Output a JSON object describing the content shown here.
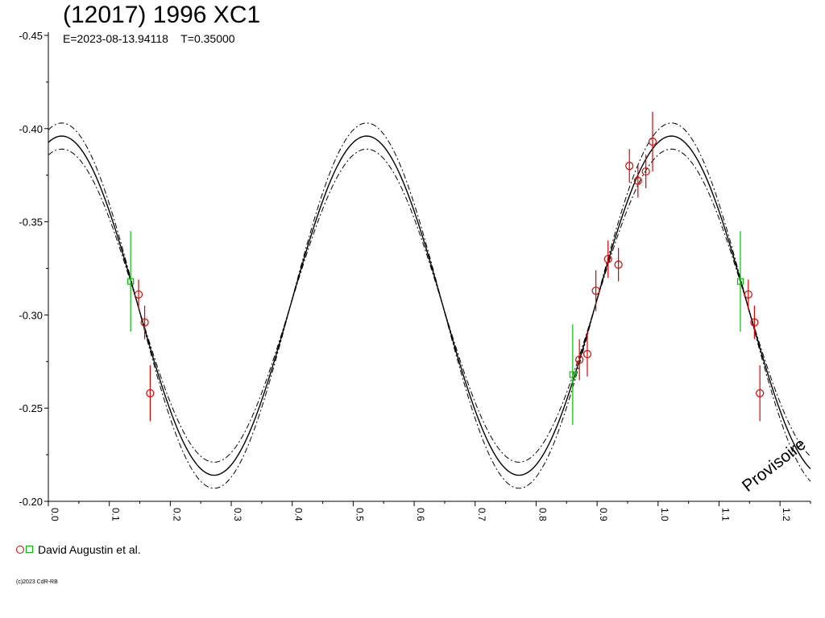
{
  "chart_data": {
    "type": "scatter",
    "title": "(12017) 1996 XC1",
    "subtitle": "E=2023-08-13.94118    T=0.35000",
    "xlabel": "",
    "ylabel": "",
    "xlim": [
      0.0,
      1.25
    ],
    "ylim": [
      -0.45,
      -0.2
    ],
    "y_inverted": true,
    "x_ticks": [
      "0.0",
      "0.1",
      "0.2",
      "0.3",
      "0.4",
      "0.5",
      "0.6",
      "0.7",
      "0.8",
      "0.9",
      "1.0",
      "1.1",
      "1.2"
    ],
    "y_ticks": [
      "-0.45",
      "-0.40",
      "-0.35",
      "-0.30",
      "-0.25",
      "-0.20"
    ],
    "grid": false,
    "watermark": "Provisoire",
    "legend": {
      "position": "bottom-left",
      "label": "David Augustin et al.",
      "marker_colors": [
        "#e00000",
        "#00c000"
      ]
    },
    "model": {
      "mean": -0.305,
      "amplitude": 0.091,
      "cycle_period": 0.5,
      "peak_phase": 0.022,
      "band": 0.007,
      "color": "#000000"
    },
    "series": [
      {
        "marker": "circle",
        "color": "#e00000",
        "points": [
          {
            "x": 0.148,
            "y": -0.311,
            "err": 0.008
          },
          {
            "x": 0.158,
            "y": -0.296,
            "err": 0.009
          },
          {
            "x": 0.167,
            "y": -0.258,
            "err": 0.015
          },
          {
            "x": 0.871,
            "y": -0.276,
            "err": 0.011
          },
          {
            "x": 0.884,
            "y": -0.279,
            "err": 0.012
          },
          {
            "x": 0.898,
            "y": -0.313,
            "err": 0.011
          },
          {
            "x": 0.918,
            "y": -0.33,
            "err": 0.01
          },
          {
            "x": 0.935,
            "y": -0.327,
            "err": 0.009
          },
          {
            "x": 0.953,
            "y": -0.38,
            "err": 0.009
          },
          {
            "x": 0.967,
            "y": -0.372,
            "err": 0.009
          },
          {
            "x": 0.98,
            "y": -0.377,
            "err": 0.009
          },
          {
            "x": 0.991,
            "y": -0.393,
            "err": 0.016
          },
          {
            "x": 1.148,
            "y": -0.311,
            "err": 0.008
          },
          {
            "x": 1.158,
            "y": -0.296,
            "err": 0.009
          },
          {
            "x": 1.167,
            "y": -0.258,
            "err": 0.015
          }
        ]
      },
      {
        "marker": "square",
        "color": "#00c000",
        "points": [
          {
            "x": 0.135,
            "y": -0.318,
            "err": 0.027
          },
          {
            "x": 0.86,
            "y": -0.268,
            "err": 0.027
          },
          {
            "x": 1.135,
            "y": -0.318,
            "err": 0.027
          }
        ]
      }
    ]
  },
  "footer": {
    "copyright": "(c)2023 CdR-RB"
  }
}
